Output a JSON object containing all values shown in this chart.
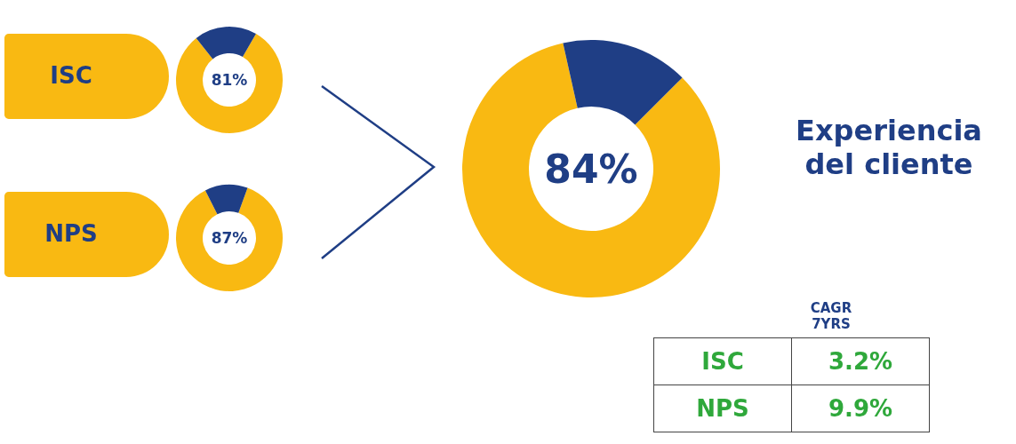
{
  "chart_data": [
    {
      "type": "donut",
      "title": "ISC",
      "categories": [
        null,
        null
      ],
      "values": [
        81,
        19
      ],
      "colors": [
        "#f9b912",
        "#1f3e85"
      ],
      "annotations": [
        "81%"
      ]
    },
    {
      "type": "donut",
      "title": "NPS",
      "categories": [
        null,
        null
      ],
      "values": [
        87,
        13
      ],
      "colors": [
        "#f9b912",
        "#1f3e85"
      ],
      "annotations": [
        "87%"
      ]
    },
    {
      "type": "donut",
      "title": "Experiencia del cliente",
      "categories": [
        null,
        null
      ],
      "values": [
        84,
        16
      ],
      "colors": [
        "#f9b912",
        "#1f3e85"
      ],
      "annotations": [
        "84%"
      ]
    },
    {
      "type": "other",
      "title": "CAGR",
      "subtitle": "7YRS",
      "categories": [
        "ISC",
        "NPS"
      ],
      "value_labels": [
        "3.2%",
        "9.9%"
      ]
    }
  ]
}
